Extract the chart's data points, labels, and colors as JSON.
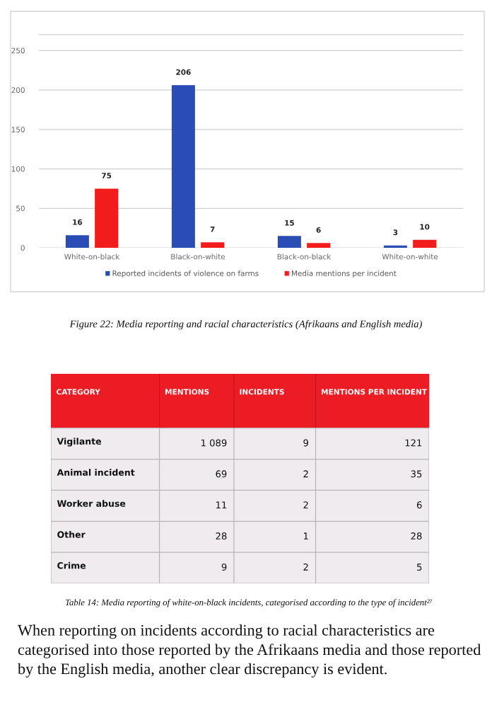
{
  "chart_data": [
    {
      "type": "bar",
      "categories": [
        "White-on-black",
        "Black-on-white",
        "Black-on-black",
        "White-on-white"
      ],
      "series": [
        {
          "name": "Reported incidents of violence on farms",
          "color": "#2a4db5",
          "values": [
            16,
            206,
            15,
            3
          ]
        },
        {
          "name": "Media mentions per incident",
          "color": "#f21c1c",
          "values": [
            75,
            7,
            6,
            10
          ]
        }
      ],
      "ylim": [
        0,
        270
      ],
      "yticks": [
        0,
        50,
        100,
        150,
        200,
        250
      ],
      "grid": "y",
      "legend": "bottom",
      "data_labels": true,
      "annotations": [
        "Figure 22: Media reporting and racial characteristics (Afrikaans and English media)"
      ]
    },
    {
      "type": "other",
      "color": "#ec1c24",
      "ylabel": "CATEGORY",
      "categories": [
        "MENTIONS",
        "INCIDENTS",
        "MENTIONS PER INCIDENT"
      ],
      "y_categories": [
        "Vigilante",
        "Animal incident",
        "Worker abuse",
        "Other",
        "Crime"
      ],
      "cell_labels": [
        [
          "1 089",
          "9",
          "121"
        ],
        [
          "69",
          "2",
          "35"
        ],
        [
          "11",
          "2",
          "6"
        ],
        [
          "28",
          "1",
          "28"
        ],
        [
          "9",
          "2",
          "5"
        ]
      ],
      "annotations": [
        "Table 14: Media reporting of white-on-black incidents, categorised according to the type of incident²⁷",
        "When reporting on incidents according to racial characteristics are categorised into those reported by the Afrikaans media and those reported by the English media, another clear discrepancy is evident."
      ]
    }
  ]
}
